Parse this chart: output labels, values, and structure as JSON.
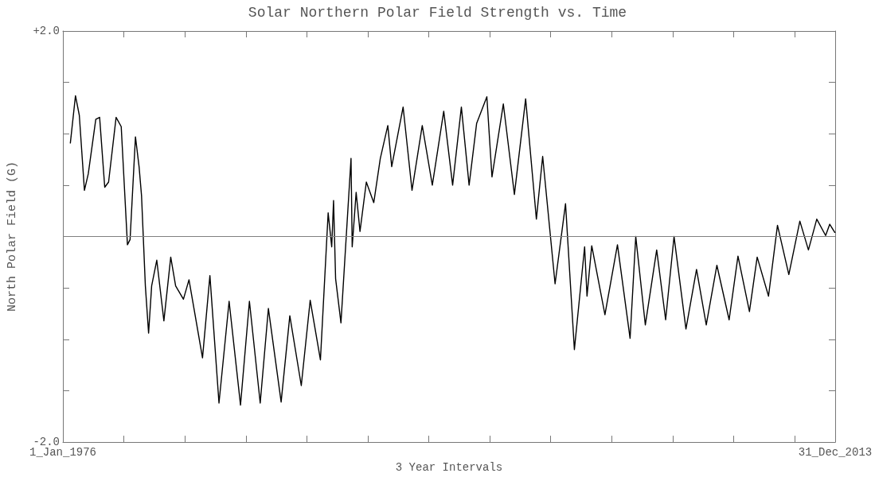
{
  "chart_data": {
    "type": "line",
    "title": "Solar Northern Polar Field Strength vs. Time",
    "xlabel": "3 Year Intervals",
    "ylabel": "North Polar Field (G)",
    "xlim": [
      "1976-01-01",
      "2013-12-31"
    ],
    "xticks": [
      {
        "value": "1976-01-01",
        "label": "1_Jan_1976"
      },
      {
        "value": "1979-01-01",
        "label": null
      },
      {
        "value": "1982-01-01",
        "label": null
      },
      {
        "value": "1985-01-01",
        "label": null
      },
      {
        "value": "1988-01-01",
        "label": null
      },
      {
        "value": "1991-01-01",
        "label": null
      },
      {
        "value": "1994-01-01",
        "label": null
      },
      {
        "value": "1997-01-01",
        "label": null
      },
      {
        "value": "2000-01-01",
        "label": null
      },
      {
        "value": "2003-01-01",
        "label": null
      },
      {
        "value": "2006-01-01",
        "label": null
      },
      {
        "value": "2009-01-01",
        "label": null
      },
      {
        "value": "2012-01-01",
        "label": null
      },
      {
        "value": "2013-12-31",
        "label": "31_Dec_2013"
      }
    ],
    "ylim": [
      -2,
      2
    ],
    "yticks": [
      {
        "value": -2,
        "label": "-2.0"
      },
      {
        "value": -1.5,
        "label": null
      },
      {
        "value": -1,
        "label": null
      },
      {
        "value": -0.5,
        "label": null
      },
      {
        "value": 0,
        "label": null
      },
      {
        "value": 0.5,
        "label": null
      },
      {
        "value": 1,
        "label": null
      },
      {
        "value": 1.5,
        "label": null
      },
      {
        "value": 2,
        "label": "+2.0"
      }
    ],
    "marker": "none",
    "ref_lines": [
      {
        "axis": "y",
        "value": 0,
        "color": "#808080"
      }
    ],
    "series": [
      {
        "color": "#000000",
        "x": [
          "1976-05-14",
          "1976-08-14",
          "1976-10-22",
          "1977-01-22",
          "1977-04-01",
          "1977-08-14",
          "1977-10-22",
          "1978-01-22",
          "1978-04-01",
          "1978-08-14",
          "1978-11-14",
          "1979-03-06",
          "1979-04-22",
          "1979-07-28",
          "1979-10-01",
          "1979-11-14",
          "1980-01-22",
          "1980-03-20",
          "1980-05-14",
          "1980-08-14",
          "1980-12-20",
          "1981-04-22",
          "1981-07-19",
          "1981-12-06",
          "1982-03-16",
          "1982-11-14",
          "1983-03-27",
          "1983-09-06",
          "1984-03-06",
          "1984-09-27",
          "1985-03-06",
          "1985-09-16",
          "1986-02-10",
          "1986-09-27",
          "1987-03-02",
          "1987-09-24",
          "1988-03-02",
          "1988-09-02",
          "1989-01-19",
          "1989-03-24",
          "1989-04-26",
          "1989-06-02",
          "1989-09-06",
          "1989-11-14",
          "1990-03-06",
          "1990-03-27",
          "1990-06-06",
          "1990-08-14",
          "1990-12-06",
          "1991-04-19",
          "1991-08-14",
          "1991-12-27",
          "1992-03-06",
          "1992-09-27",
          "1993-03-06",
          "1993-09-06",
          "1994-03-06",
          "1994-09-27",
          "1995-03-06",
          "1995-08-10",
          "1995-12-27",
          "1996-05-10",
          "1996-11-10",
          "1997-02-10",
          "1997-09-02",
          "1998-03-20",
          "1998-10-08",
          "1999-04-19",
          "1999-08-10",
          "2000-03-20",
          "2000-09-24",
          "2001-03-02",
          "2001-09-02",
          "2001-10-15",
          "2002-01-08",
          "2002-09-02",
          "2003-04-15",
          "2003-11-28",
          "2004-03-09",
          "2004-08-28",
          "2005-03-20",
          "2005-08-28",
          "2006-01-26",
          "2006-08-28",
          "2007-03-06",
          "2007-08-28",
          "2008-03-06",
          "2008-10-12",
          "2009-03-20",
          "2009-10-12",
          "2010-02-28",
          "2010-09-20",
          "2011-02-28",
          "2011-09-20",
          "2012-04-05",
          "2012-09-06",
          "2013-02-03",
          "2013-07-12",
          "2013-09-24",
          "2013-12-24"
        ],
        "values": [
          0.91,
          1.37,
          1.18,
          0.45,
          0.61,
          1.14,
          1.16,
          0.48,
          0.53,
          1.16,
          1.07,
          -0.08,
          -0.03,
          0.97,
          0.68,
          0.4,
          -0.48,
          -0.94,
          -0.48,
          -0.23,
          -0.82,
          -0.2,
          -0.48,
          -0.61,
          -0.42,
          -1.18,
          -0.38,
          -1.62,
          -0.63,
          -1.64,
          -0.63,
          -1.62,
          -0.7,
          -1.61,
          -0.77,
          -1.45,
          -0.62,
          -1.2,
          0.23,
          -0.1,
          0.35,
          -0.41,
          -0.84,
          -0.23,
          0.76,
          -0.1,
          0.43,
          0.05,
          0.53,
          0.33,
          0.76,
          1.08,
          0.68,
          1.26,
          0.45,
          1.08,
          0.5,
          1.22,
          0.5,
          1.26,
          0.5,
          1.1,
          1.36,
          0.58,
          1.29,
          0.41,
          1.34,
          0.17,
          0.78,
          -0.46,
          0.32,
          -1.1,
          -0.1,
          -0.58,
          -0.09,
          -0.76,
          -0.08,
          -0.99,
          0,
          -0.86,
          -0.13,
          -0.81,
          0,
          -0.9,
          -0.32,
          -0.86,
          -0.28,
          -0.81,
          -0.19,
          -0.73,
          -0.2,
          -0.58,
          0.11,
          -0.37,
          0.15,
          -0.13,
          0.17,
          0.01,
          0.12,
          0.04
        ]
      }
    ]
  }
}
